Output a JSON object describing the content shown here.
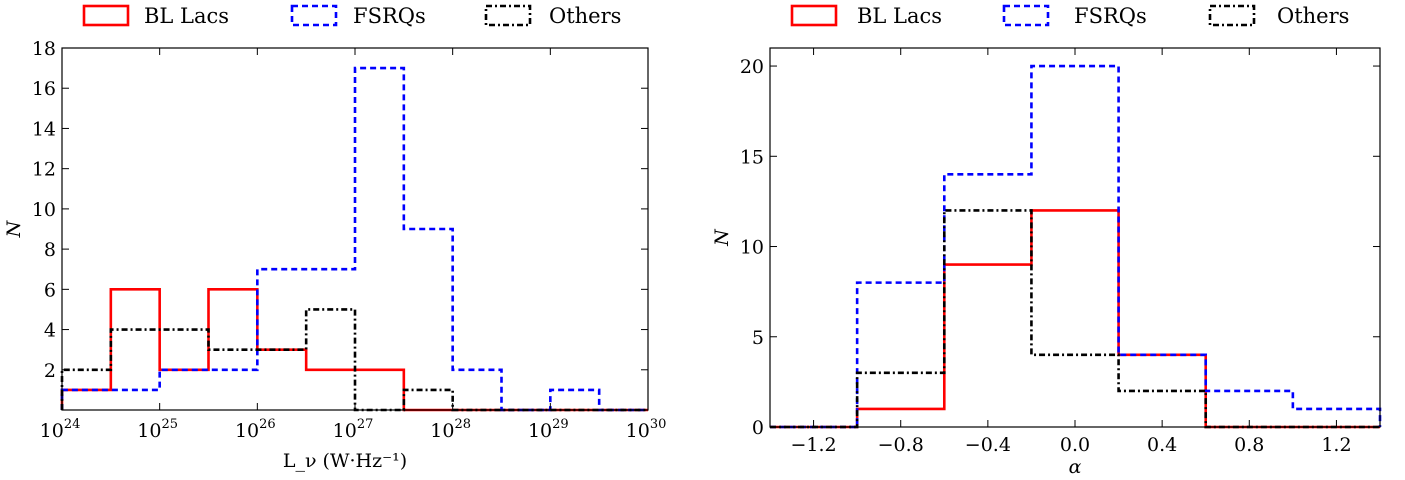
{
  "chart_data": [
    {
      "type": "histogram",
      "xlabel": "L_ν (W·Hz⁻¹)",
      "ylabel": "N",
      "xscale": "log",
      "xlim": [
        1e+24,
        1e+30
      ],
      "ylim": [
        0,
        18
      ],
      "x_tick_base": "10",
      "x_tick_exponents": [
        "24",
        "25",
        "26",
        "27",
        "28",
        "29",
        "30"
      ],
      "y_ticks": [
        "2",
        "4",
        "6",
        "8",
        "10",
        "12",
        "14",
        "16",
        "18"
      ],
      "legend_position": "top",
      "bin_edges_log10": [
        24.0,
        24.5,
        25.0,
        25.5,
        26.0,
        26.5,
        27.0,
        27.5,
        28.0,
        28.5,
        29.0,
        29.5,
        30.0
      ],
      "series": [
        {
          "name": "BL Lacs",
          "color": "#ff0000",
          "style": "solid",
          "values": [
            1,
            6,
            2,
            6,
            3,
            2,
            2,
            0,
            0,
            0,
            0,
            0
          ]
        },
        {
          "name": "FSRQs",
          "color": "#0000ff",
          "style": "dashed",
          "values": [
            1,
            1,
            2,
            2,
            7,
            7,
            17,
            9,
            2,
            0,
            1,
            0
          ]
        },
        {
          "name": "Others",
          "color": "#000000",
          "style": "dashdot",
          "values": [
            2,
            4,
            4,
            3,
            3,
            5,
            0,
            1,
            0,
            0,
            0,
            0
          ]
        }
      ]
    },
    {
      "type": "histogram",
      "xlabel": "α",
      "ylabel": "N",
      "xlim": [
        -1.4,
        1.4
      ],
      "ylim": [
        0,
        21
      ],
      "x_ticks": [
        -1.2,
        -0.8,
        -0.4,
        0.0,
        0.4,
        0.8,
        1.2
      ],
      "x_tick_labels": [
        "−1.2",
        "−0.8",
        "−0.4",
        "0.0",
        "0.4",
        "0.8",
        "1.2"
      ],
      "y_ticks": [
        0,
        5,
        10,
        15,
        20
      ],
      "y_tick_labels": [
        "0",
        "5",
        "10",
        "15",
        "20"
      ],
      "legend_position": "top",
      "bin_edges": [
        -1.4,
        -1.0,
        -0.6,
        -0.2,
        0.2,
        0.6,
        1.0,
        1.4
      ],
      "series": [
        {
          "name": "BL Lacs",
          "color": "#ff0000",
          "style": "solid",
          "values": [
            0,
            1,
            9,
            12,
            4,
            0,
            0
          ]
        },
        {
          "name": "FSRQs",
          "color": "#0000ff",
          "style": "dashed",
          "values": [
            0,
            8,
            14,
            20,
            4,
            2,
            1
          ]
        },
        {
          "name": "Others",
          "color": "#000000",
          "style": "dashdot",
          "values": [
            0,
            3,
            12,
            4,
            2,
            0,
            0
          ]
        }
      ]
    }
  ]
}
